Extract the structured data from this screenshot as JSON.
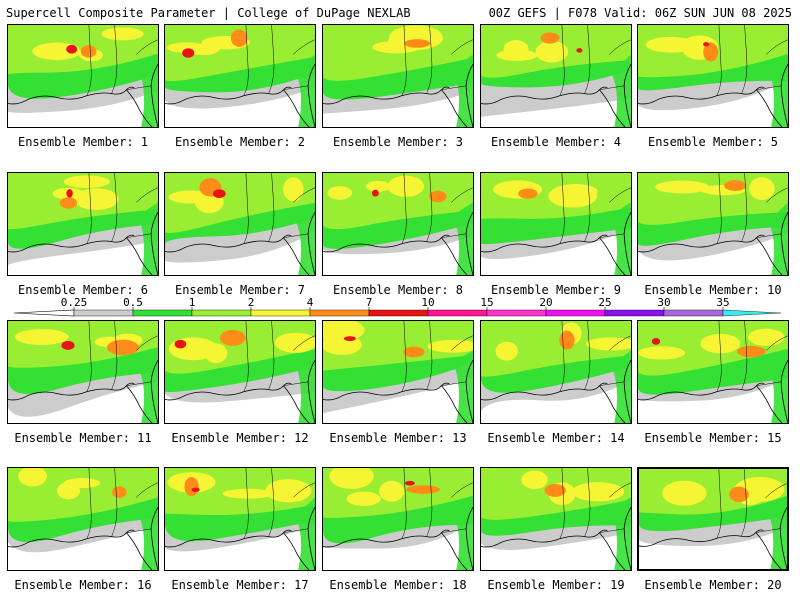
{
  "header": {
    "title_left": "Supercell Composite Parameter | College of DuPage NEXLAB",
    "title_right": "00Z GEFS | F078 Valid: 06Z SUN JUN 08 2025"
  },
  "members": [
    {
      "label": "Ensemble Member: 1"
    },
    {
      "label": "Ensemble Member: 2"
    },
    {
      "label": "Ensemble Member: 3"
    },
    {
      "label": "Ensemble Member: 4"
    },
    {
      "label": "Ensemble Member: 5"
    },
    {
      "label": "Ensemble Member: 6"
    },
    {
      "label": "Ensemble Member: 7"
    },
    {
      "label": "Ensemble Member: 8"
    },
    {
      "label": "Ensemble Member: 9"
    },
    {
      "label": "Ensemble Member: 10"
    },
    {
      "label": "Ensemble Member: 11"
    },
    {
      "label": "Ensemble Member: 12"
    },
    {
      "label": "Ensemble Member: 13"
    },
    {
      "label": "Ensemble Member: 14"
    },
    {
      "label": "Ensemble Member: 15"
    },
    {
      "label": "Ensemble Member: 16"
    },
    {
      "label": "Ensemble Member: 17"
    },
    {
      "label": "Ensemble Member: 18"
    },
    {
      "label": "Ensemble Member: 19"
    },
    {
      "label": "Ensemble Member: 20"
    }
  ],
  "colorbar": {
    "labels": [
      "0.25",
      "0.5",
      "1",
      "2",
      "4",
      "7",
      "10",
      "15",
      "20",
      "25",
      "30",
      "35"
    ],
    "colors": [
      "#cccccc",
      "#33e033",
      "#99ee33",
      "#f5f533",
      "#ff8c19",
      "#e81414",
      "#ff1493",
      "#ff33cc",
      "#ee11ee",
      "#8811ee",
      "#aa66dd",
      "#33eeee"
    ]
  }
}
